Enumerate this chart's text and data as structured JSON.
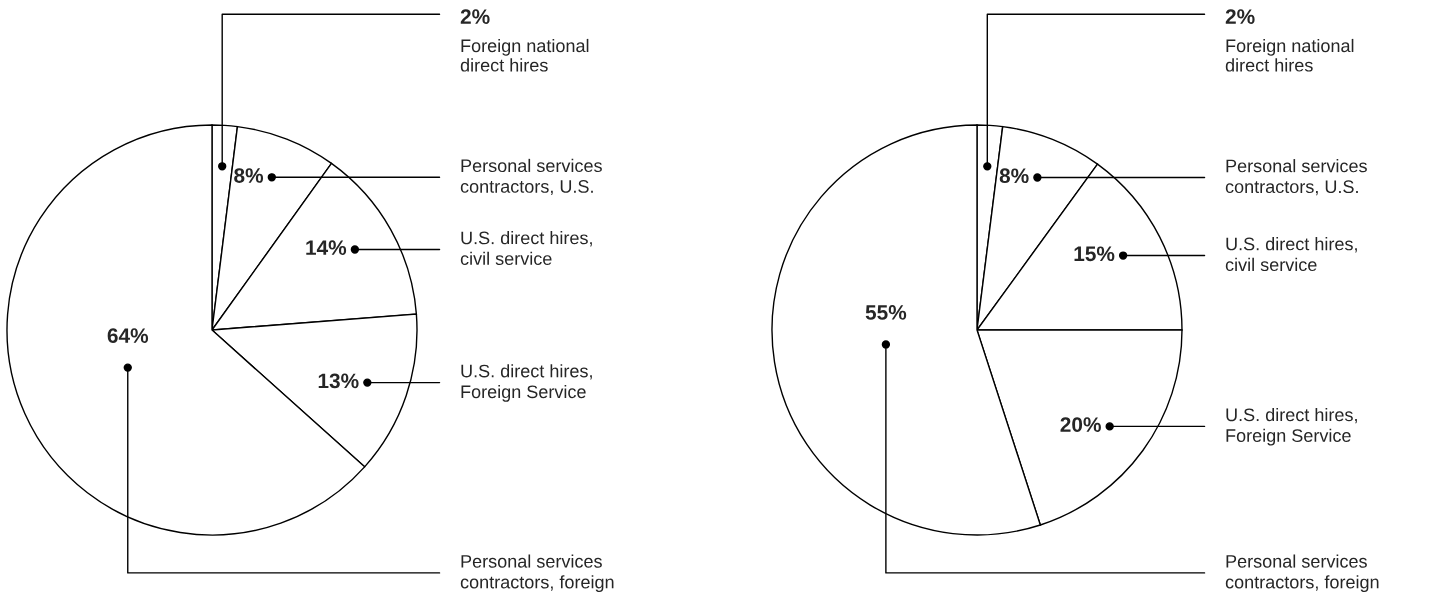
{
  "chart_data": [
    {
      "type": "pie",
      "categories": [
        "Foreign national\ndirect hires",
        "Personal services\ncontractors, U.S.",
        "U.S. direct hires,\ncivil service",
        "U.S. direct hires,\nForeign Service",
        "Personal services\ncontractors, foreign"
      ],
      "values": [
        2,
        8,
        14,
        13,
        64
      ],
      "value_labels": [
        "2%",
        "8%",
        "14%",
        "13%",
        "64%"
      ],
      "colors": [
        "#ffffff",
        "#ffffff",
        "#ffffff",
        "#ffffff",
        "#ffffff"
      ]
    },
    {
      "type": "pie",
      "categories": [
        "Foreign national\ndirect hires",
        "Personal services\ncontractors, U.S.",
        "U.S. direct hires,\ncivil service",
        "U.S. direct hires,\nForeign Service",
        "Personal services\ncontractors, foreign"
      ],
      "values": [
        2,
        8,
        15,
        20,
        55
      ],
      "value_labels": [
        "2%",
        "8%",
        "15%",
        "20%",
        "55%"
      ],
      "colors": [
        "#ffffff",
        "#ffffff",
        "#ffffff",
        "#ffffff",
        "#ffffff"
      ]
    }
  ]
}
